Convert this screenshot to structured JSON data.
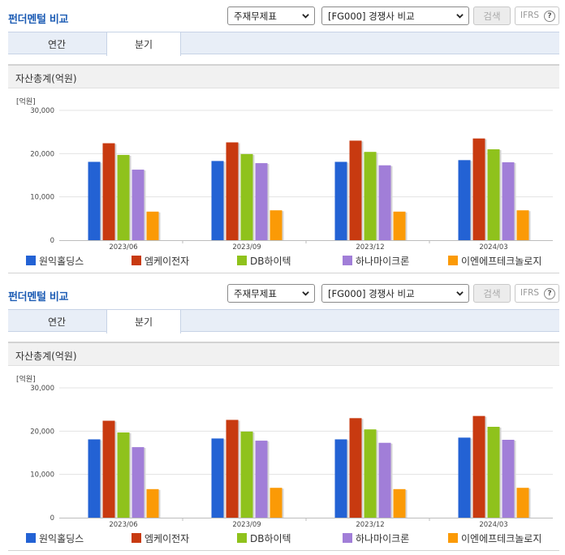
{
  "header": {
    "title": "펀더멘털 비교",
    "select1": "주재무제표",
    "select2": "[FG000] 경쟁사 비교",
    "search_label": "검색",
    "ifrs_label": "IFRS",
    "help_label": "?"
  },
  "tabs": [
    {
      "label": "연간"
    },
    {
      "label": "분기"
    }
  ],
  "chart_title": "자산총계(억원)",
  "colors": {
    "title": "#1d5cb4",
    "series": [
      "#2362d4",
      "#c83a10",
      "#8fc21c",
      "#a17ed8",
      "#fb9a06"
    ]
  },
  "chart_data": {
    "type": "bar",
    "unit_label": "[억원]",
    "categories": [
      "2023/06",
      "2023/09",
      "2023/12",
      "2024/03"
    ],
    "ylim": [
      0,
      30000
    ],
    "yticks": [
      0,
      10000,
      20000,
      30000
    ],
    "ytick_labels": [
      "0",
      "10,000",
      "20,000",
      "30,000"
    ],
    "grid": true,
    "legend_position": "bottom",
    "series": [
      {
        "name": "원익홀딩스",
        "values": [
          18100,
          18300,
          18100,
          18500
        ]
      },
      {
        "name": "엠케이전자",
        "values": [
          22400,
          22600,
          23000,
          23500
        ]
      },
      {
        "name": "DB하이텍",
        "values": [
          19700,
          19900,
          20400,
          21000
        ]
      },
      {
        "name": "하나마이크론",
        "values": [
          16300,
          17800,
          17300,
          18000
        ]
      },
      {
        "name": "이엔에프테크놀로지",
        "values": [
          6600,
          6900,
          6600,
          6900
        ]
      }
    ]
  }
}
